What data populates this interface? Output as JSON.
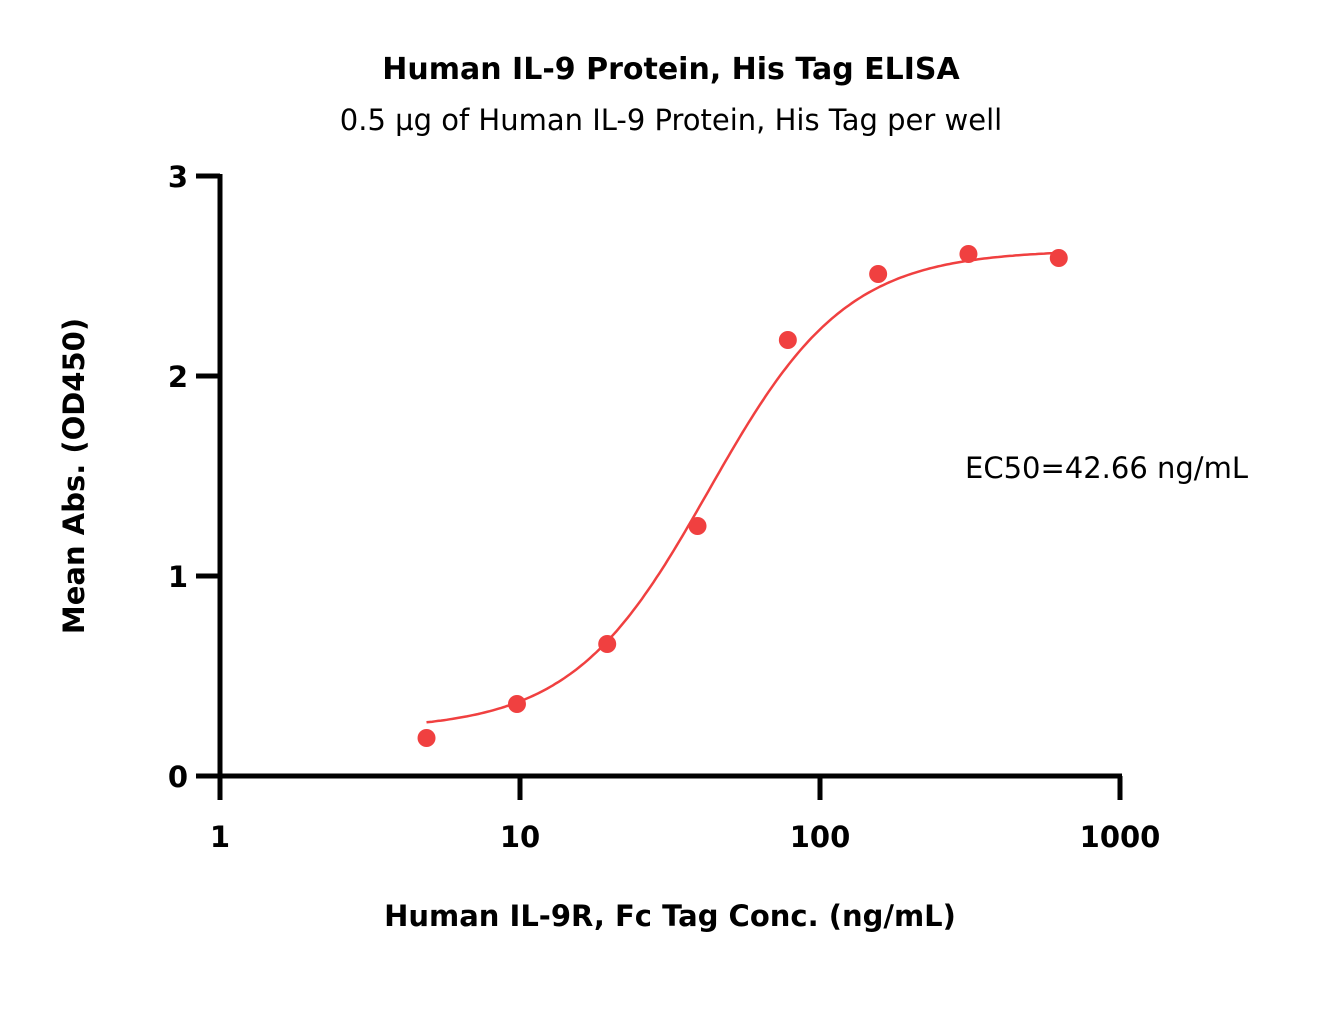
{
  "chart_data": {
    "type": "scatter",
    "title": "Human IL-9 Protein, His Tag ELISA",
    "subtitle": "0.5 µg of Human IL-9 Protein, His Tag per well",
    "xlabel": "Human IL-9R, Fc Tag Conc. (ng/mL)",
    "ylabel": "Mean Abs. (OD450)",
    "x_scale": "log",
    "xlim": [
      1,
      1000
    ],
    "ylim": [
      0,
      3
    ],
    "x_ticks": [
      "1",
      "10",
      "100",
      "1000"
    ],
    "y_ticks": [
      "0",
      "1",
      "2",
      "3"
    ],
    "grid": false,
    "series": [
      {
        "color": "#f04040",
        "x": [
          4.88,
          9.77,
          19.53,
          39.06,
          78.13,
          156.25,
          312.5,
          625
        ],
        "y": [
          0.19,
          0.36,
          0.66,
          1.25,
          2.18,
          2.51,
          2.61,
          2.59
        ]
      }
    ],
    "fit_curve": {
      "model": "4PL",
      "bottom": 0.23,
      "top": 2.63,
      "ec50": 42.66,
      "hill": 1.9,
      "x_range": [
        4.88,
        625
      ]
    },
    "annotations": [
      "EC50=42.66 ng/mL"
    ]
  }
}
